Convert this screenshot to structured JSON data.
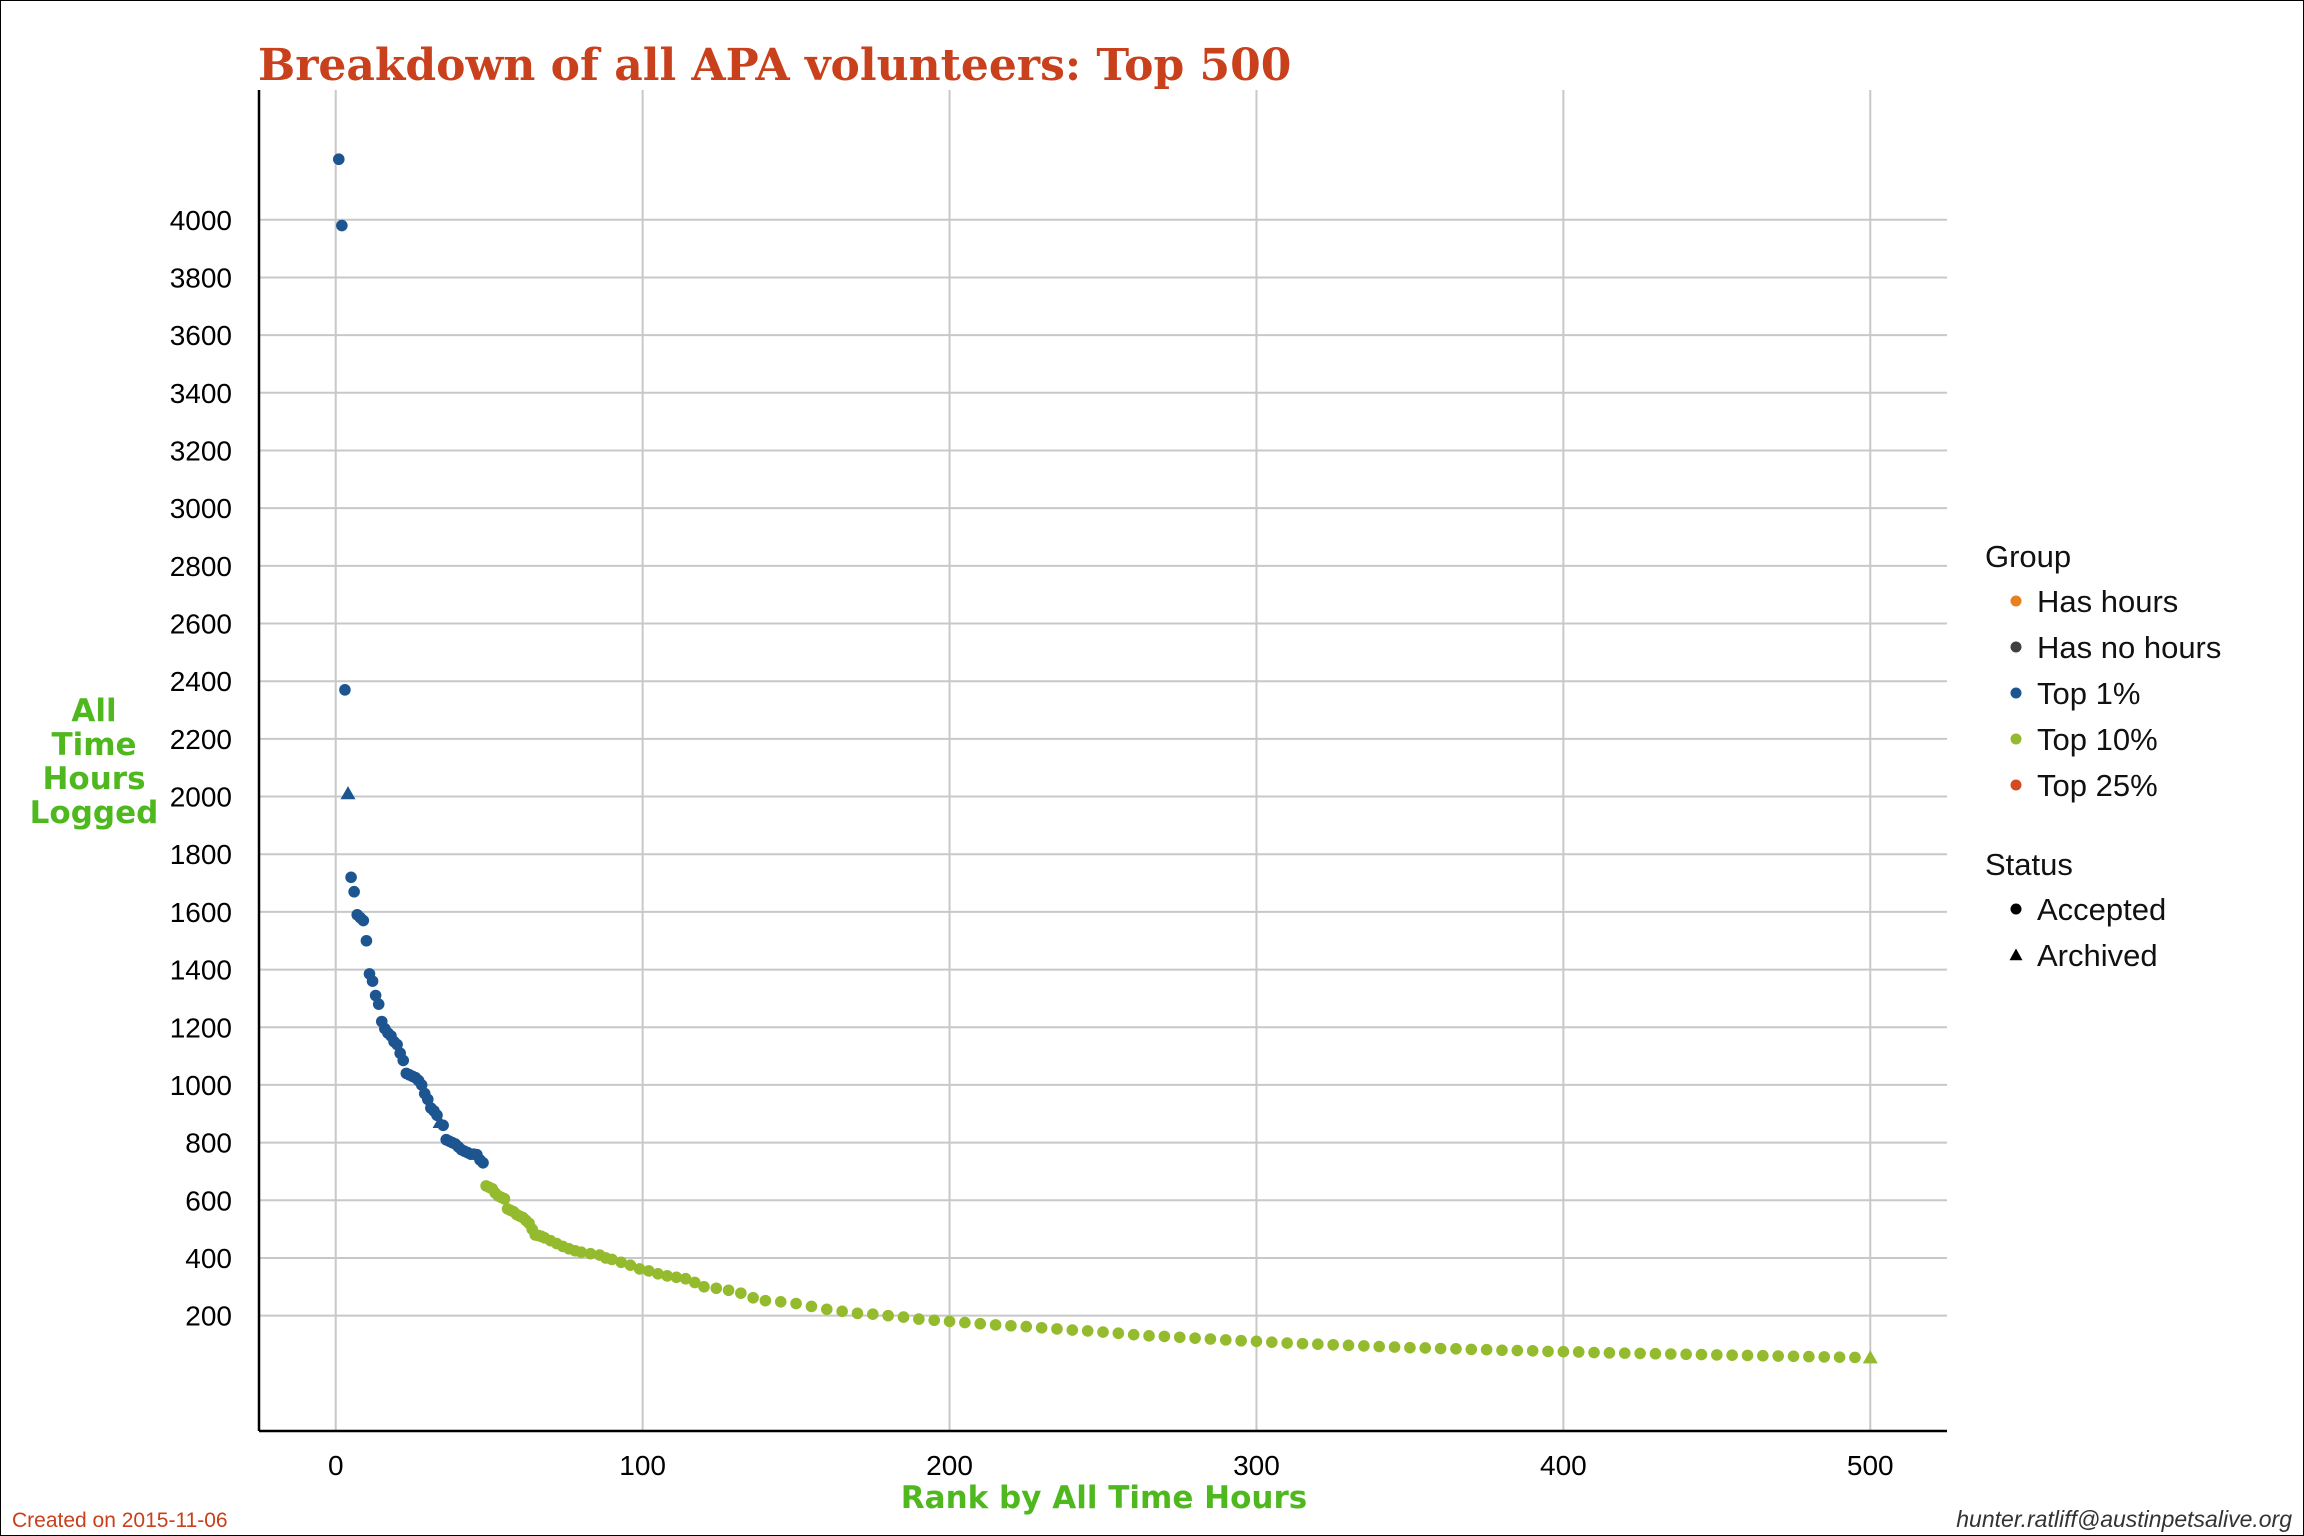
{
  "chart_data": {
    "type": "scatter",
    "title": "Breakdown of all APA volunteers: Top 500",
    "xlabel": "Rank by All Time Hours",
    "ylabel_lines": [
      "All",
      "Time",
      "Hours",
      "Logged"
    ],
    "xlim": [
      -25,
      525
    ],
    "ylim": [
      -200,
      4450
    ],
    "x_ticks": [
      0,
      100,
      200,
      300,
      400,
      500
    ],
    "y_ticks": [
      200,
      400,
      600,
      800,
      1000,
      1200,
      1400,
      1600,
      1800,
      2000,
      2200,
      2400,
      2600,
      2800,
      3000,
      3200,
      3400,
      3600,
      3800,
      4000
    ],
    "grid": true,
    "legend_position": "right",
    "group_legend": {
      "title": "Group",
      "items": [
        {
          "label": "Has hours",
          "color": "#e8801e"
        },
        {
          "label": "Has no hours",
          "color": "#404040"
        },
        {
          "label": "Top 1%",
          "color": "#1c5590"
        },
        {
          "label": "Top 10%",
          "color": "#94ba2e"
        },
        {
          "label": "Top 25%",
          "color": "#d24b24"
        }
      ]
    },
    "status_legend": {
      "title": "Status",
      "items": [
        {
          "label": "Accepted",
          "shape": "circle"
        },
        {
          "label": "Archived",
          "shape": "triangle"
        }
      ]
    },
    "series": [
      {
        "name": "Top 1%",
        "color": "#1c5590",
        "points": [
          [
            1,
            4210,
            "c"
          ],
          [
            2,
            3980,
            "c"
          ],
          [
            3,
            2370,
            "c"
          ],
          [
            4,
            2010,
            "t"
          ],
          [
            5,
            1720,
            "c"
          ],
          [
            6,
            1670,
            "c"
          ],
          [
            7,
            1590,
            "c"
          ],
          [
            8,
            1580,
            "c"
          ],
          [
            9,
            1570,
            "c"
          ],
          [
            10,
            1500,
            "c"
          ],
          [
            11,
            1385,
            "c"
          ],
          [
            12,
            1360,
            "c"
          ],
          [
            13,
            1310,
            "c"
          ],
          [
            14,
            1280,
            "c"
          ],
          [
            15,
            1220,
            "c"
          ],
          [
            16,
            1195,
            "c"
          ],
          [
            17,
            1180,
            "c"
          ],
          [
            18,
            1170,
            "c"
          ],
          [
            19,
            1150,
            "c"
          ],
          [
            20,
            1140,
            "c"
          ],
          [
            21,
            1110,
            "c"
          ],
          [
            22,
            1085,
            "c"
          ],
          [
            23,
            1040,
            "c"
          ],
          [
            24,
            1035,
            "c"
          ],
          [
            25,
            1030,
            "c"
          ],
          [
            26,
            1025,
            "c"
          ],
          [
            27,
            1015,
            "c"
          ],
          [
            28,
            1000,
            "c"
          ],
          [
            29,
            970,
            "c"
          ],
          [
            30,
            950,
            "c"
          ],
          [
            31,
            920,
            "c"
          ],
          [
            32,
            910,
            "c"
          ],
          [
            33,
            895,
            "c"
          ],
          [
            34,
            870,
            "t"
          ],
          [
            35,
            860,
            "c"
          ],
          [
            36,
            810,
            "c"
          ],
          [
            37,
            805,
            "c"
          ],
          [
            38,
            800,
            "c"
          ],
          [
            39,
            795,
            "c"
          ],
          [
            40,
            785,
            "c"
          ],
          [
            41,
            775,
            "c"
          ],
          [
            42,
            770,
            "c"
          ],
          [
            43,
            765,
            "c"
          ],
          [
            44,
            760,
            "c"
          ],
          [
            45,
            760,
            "c"
          ],
          [
            46,
            758,
            "c"
          ],
          [
            47,
            740,
            "c"
          ],
          [
            48,
            730,
            "c"
          ]
        ]
      },
      {
        "name": "Top 10%",
        "color": "#94ba2e",
        "points": [
          [
            49,
            650,
            "c"
          ],
          [
            50,
            645,
            "c"
          ],
          [
            51,
            640,
            "c"
          ],
          [
            52,
            625,
            "c"
          ],
          [
            53,
            615,
            "c"
          ],
          [
            54,
            610,
            "c"
          ],
          [
            55,
            605,
            "c"
          ],
          [
            56,
            570,
            "c"
          ],
          [
            57,
            565,
            "c"
          ],
          [
            58,
            560,
            "c"
          ],
          [
            59,
            550,
            "c"
          ],
          [
            60,
            545,
            "c"
          ],
          [
            61,
            540,
            "c"
          ],
          [
            62,
            530,
            "c"
          ],
          [
            63,
            520,
            "c"
          ],
          [
            64,
            500,
            "c"
          ],
          [
            65,
            480,
            "c"
          ],
          [
            66,
            478,
            "c"
          ],
          [
            67,
            475,
            "c"
          ],
          [
            68,
            470,
            "c"
          ],
          [
            70,
            460,
            "c"
          ],
          [
            72,
            450,
            "c"
          ],
          [
            74,
            440,
            "c"
          ],
          [
            76,
            432,
            "c"
          ],
          [
            78,
            425,
            "c"
          ],
          [
            80,
            420,
            "c"
          ],
          [
            83,
            415,
            "c"
          ],
          [
            86,
            410,
            "c"
          ],
          [
            88,
            400,
            "c"
          ],
          [
            90,
            395,
            "c"
          ],
          [
            93,
            385,
            "c"
          ],
          [
            96,
            375,
            "c"
          ],
          [
            99,
            362,
            "c"
          ],
          [
            102,
            355,
            "c"
          ],
          [
            105,
            345,
            "c"
          ],
          [
            108,
            338,
            "c"
          ],
          [
            111,
            333,
            "c"
          ],
          [
            114,
            328,
            "c"
          ],
          [
            117,
            315,
            "c"
          ],
          [
            120,
            300,
            "c"
          ],
          [
            124,
            295,
            "c"
          ],
          [
            128,
            288,
            "c"
          ],
          [
            132,
            278,
            "c"
          ],
          [
            136,
            262,
            "c"
          ],
          [
            140,
            252,
            "c"
          ],
          [
            145,
            248,
            "c"
          ],
          [
            150,
            242,
            "c"
          ],
          [
            155,
            232,
            "c"
          ],
          [
            160,
            222,
            "c"
          ],
          [
            165,
            215,
            "c"
          ],
          [
            170,
            208,
            "c"
          ],
          [
            175,
            205,
            "c"
          ],
          [
            180,
            200,
            "c"
          ],
          [
            185,
            195,
            "c"
          ],
          [
            190,
            188,
            "c"
          ],
          [
            195,
            184,
            "c"
          ],
          [
            200,
            180,
            "c"
          ],
          [
            205,
            176,
            "c"
          ],
          [
            210,
            172,
            "c"
          ],
          [
            215,
            168,
            "c"
          ],
          [
            220,
            165,
            "c"
          ],
          [
            225,
            162,
            "c"
          ],
          [
            230,
            158,
            "c"
          ],
          [
            235,
            154,
            "c"
          ],
          [
            240,
            150,
            "c"
          ],
          [
            245,
            147,
            "c"
          ],
          [
            250,
            143,
            "c"
          ],
          [
            255,
            139,
            "c"
          ],
          [
            260,
            134,
            "c"
          ],
          [
            265,
            130,
            "c"
          ],
          [
            270,
            128,
            "c"
          ],
          [
            275,
            125,
            "c"
          ],
          [
            280,
            122,
            "c"
          ],
          [
            285,
            119,
            "c"
          ],
          [
            290,
            116,
            "c"
          ],
          [
            295,
            113,
            "c"
          ],
          [
            300,
            111,
            "c"
          ],
          [
            305,
            108,
            "c"
          ],
          [
            310,
            105,
            "c"
          ],
          [
            315,
            103,
            "c"
          ],
          [
            320,
            101,
            "c"
          ],
          [
            325,
            99,
            "c"
          ],
          [
            330,
            97,
            "c"
          ],
          [
            335,
            95,
            "c"
          ],
          [
            340,
            93,
            "c"
          ],
          [
            345,
            91,
            "c"
          ],
          [
            350,
            89,
            "c"
          ],
          [
            355,
            88,
            "c"
          ],
          [
            360,
            86,
            "c"
          ],
          [
            365,
            85,
            "c"
          ],
          [
            370,
            83,
            "c"
          ],
          [
            375,
            82,
            "c"
          ],
          [
            380,
            80,
            "c"
          ],
          [
            385,
            79,
            "c"
          ],
          [
            390,
            78,
            "c"
          ],
          [
            395,
            76,
            "c"
          ],
          [
            400,
            75,
            "c"
          ],
          [
            405,
            74,
            "c"
          ],
          [
            410,
            72,
            "c"
          ],
          [
            415,
            71,
            "c"
          ],
          [
            420,
            70,
            "c"
          ],
          [
            425,
            69,
            "c"
          ],
          [
            430,
            68,
            "c"
          ],
          [
            435,
            67,
            "c"
          ],
          [
            440,
            66,
            "c"
          ],
          [
            445,
            65,
            "c"
          ],
          [
            450,
            64,
            "c"
          ],
          [
            455,
            63,
            "c"
          ],
          [
            460,
            62,
            "c"
          ],
          [
            465,
            61,
            "c"
          ],
          [
            470,
            60,
            "c"
          ],
          [
            475,
            59,
            "c"
          ],
          [
            480,
            58,
            "c"
          ],
          [
            485,
            57,
            "c"
          ],
          [
            490,
            56,
            "c"
          ],
          [
            495,
            55,
            "c"
          ],
          [
            500,
            54,
            "t"
          ]
        ]
      }
    ]
  },
  "footer": {
    "created": "Created on 2015-11-06",
    "contact": "hunter.ratliff@austinpetsalive.org"
  }
}
